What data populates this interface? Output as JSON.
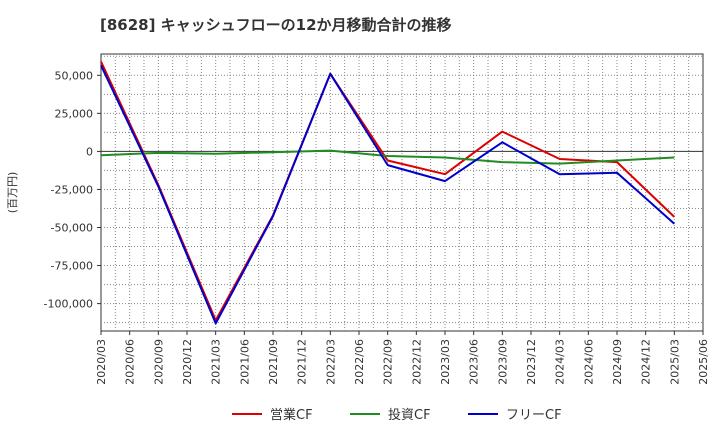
{
  "chart_data": {
    "type": "line",
    "title": "[8628]  キャッシュフローの12か月移動合計の推移",
    "ylabel": "(百万円)",
    "xlabel": "",
    "ylim": [
      -118000,
      64000
    ],
    "yticks": [
      50000,
      25000,
      0,
      -25000,
      -50000,
      -75000,
      -100000
    ],
    "ytick_labels": [
      "50,000",
      "25,000",
      "0",
      "-25,000",
      "-50,000",
      "-75,000",
      "-100,000"
    ],
    "x_ticks": [
      "2020/03",
      "2020/06",
      "2020/09",
      "2020/12",
      "2021/03",
      "2021/06",
      "2021/09",
      "2021/12",
      "2022/03",
      "2022/06",
      "2022/09",
      "2022/12",
      "2023/03",
      "2023/06",
      "2023/09",
      "2023/12",
      "2024/03",
      "2024/06",
      "2024/09",
      "2024/12",
      "2025/03",
      "2025/06"
    ],
    "x": [
      "2020/03",
      "2020/09",
      "2021/03",
      "2021/09",
      "2022/03",
      "2022/09",
      "2023/03",
      "2023/09",
      "2024/03",
      "2024/09",
      "2025/03"
    ],
    "series": [
      {
        "name": "営業CF",
        "color": "#dd0000",
        "values": [
          59000,
          -22000,
          -111000,
          -42000,
          51000,
          -6000,
          -15000,
          13000,
          -5000,
          -7000,
          -43000
        ]
      },
      {
        "name": "投資CF",
        "color": "#228B22",
        "values": [
          -2500,
          -1000,
          -1500,
          -500,
          500,
          -3000,
          -4000,
          -7000,
          -8000,
          -6000,
          -4000
        ]
      },
      {
        "name": "フリーCF",
        "color": "#0000cc",
        "values": [
          56500,
          -23000,
          -113000,
          -42500,
          51000,
          -9000,
          -19500,
          6000,
          -15000,
          -14000,
          -47500
        ]
      }
    ],
    "legend_position": "bottom",
    "grid": true
  }
}
